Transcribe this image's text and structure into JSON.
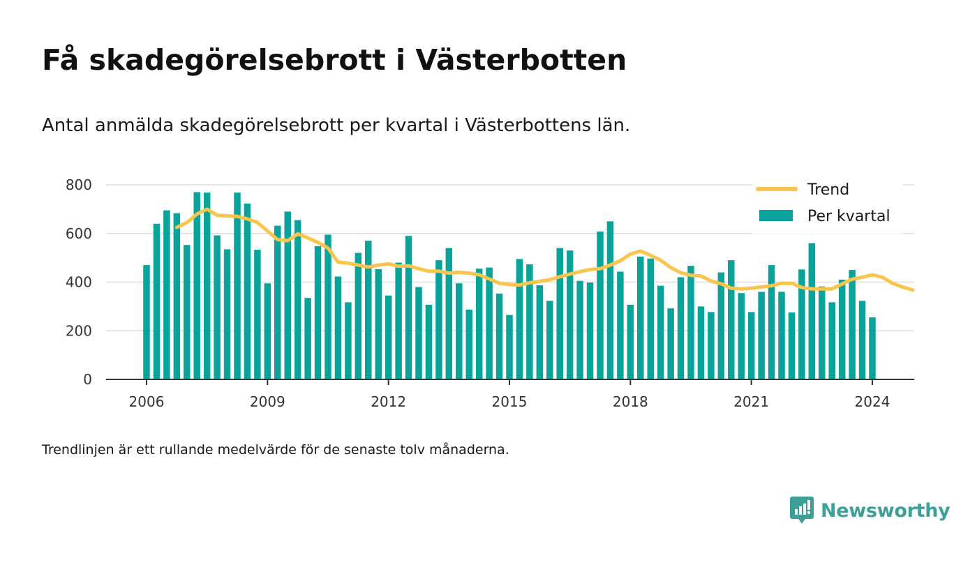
{
  "title": "Få skadegörelsebrott i Västerbotten",
  "subtitle": "Antal anmälda skadegörelsebrott per kvartal i Västerbottens län.",
  "footnote": "Trendlinjen är ett rullande medelvärde för de senaste tolv månaderna.",
  "brand": {
    "name": "Newsworthy",
    "icon": "newsworthy-logo-icon",
    "color": "#3e9f98"
  },
  "chart_data": {
    "type": "bar",
    "x_start": 2006.0,
    "x_step": 0.25,
    "xlim": [
      2005.0,
      2025.0
    ],
    "ylim": [
      0,
      800
    ],
    "yticks": [
      0,
      200,
      400,
      600,
      800
    ],
    "xticks": [
      2006,
      2009,
      2012,
      2015,
      2018,
      2021,
      2024
    ],
    "grid": true,
    "legend_position": "top-right",
    "colors": {
      "bars": "#0aa39a",
      "trend": "#f9c54e",
      "grid": "#dddddd",
      "axis": "#333333"
    },
    "series": [
      {
        "name": "Per kvartal",
        "type": "bar",
        "values": [
          470,
          640,
          695,
          683,
          553,
          770,
          768,
          592,
          535,
          768,
          723,
          533,
          395,
          632,
          690,
          655,
          335,
          548,
          595,
          423,
          317,
          520,
          570,
          453,
          345,
          480,
          590,
          380,
          307,
          490,
          540,
          395,
          287,
          455,
          460,
          353,
          265,
          495,
          473,
          387,
          323,
          540,
          530,
          405,
          398,
          608,
          650,
          443,
          307,
          505,
          497,
          385,
          292,
          420,
          467,
          300,
          277,
          440,
          490,
          355,
          277,
          360,
          470,
          360,
          275,
          452,
          560,
          382,
          317,
          410,
          450,
          323,
          255
        ]
      },
      {
        "name": "Trend",
        "type": "line",
        "x_start": 2006.75,
        "values": [
          625,
          645,
          680,
          700,
          675,
          672,
          670,
          660,
          645,
          610,
          575,
          570,
          598,
          582,
          563,
          540,
          482,
          478,
          470,
          462,
          470,
          475,
          465,
          467,
          455,
          445,
          445,
          437,
          440,
          437,
          430,
          413,
          395,
          390,
          388,
          397,
          403,
          410,
          422,
          433,
          443,
          452,
          455,
          470,
          488,
          515,
          528,
          510,
          490,
          460,
          438,
          428,
          425,
          405,
          393,
          375,
          372,
          375,
          380,
          385,
          395,
          395,
          378,
          372,
          372,
          372,
          392,
          412,
          420,
          430,
          420,
          395,
          380,
          368
        ]
      }
    ]
  }
}
